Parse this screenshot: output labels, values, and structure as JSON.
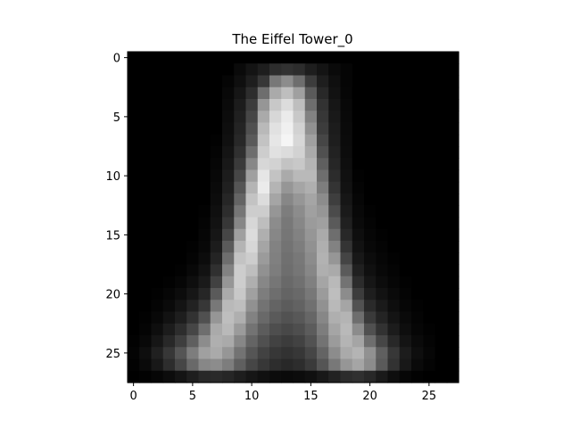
{
  "chart_data": {
    "type": "heatmap",
    "title": "The Eiffel Tower_0",
    "xlabel": "",
    "ylabel": "",
    "colormap": "gray",
    "value_range": [
      0,
      255
    ],
    "shape": [
      28,
      28
    ],
    "x_ticks": [
      0,
      5,
      10,
      15,
      20,
      25
    ],
    "y_ticks": [
      0,
      5,
      10,
      15,
      20,
      25
    ],
    "xlim": [
      -0.5,
      27.5
    ],
    "ylim": [
      27.5,
      -0.5
    ],
    "grid": false,
    "legend": "none",
    "values": [
      [
        0,
        0,
        0,
        0,
        0,
        0,
        0,
        0,
        0,
        0,
        0,
        0,
        0,
        0,
        0,
        0,
        0,
        0,
        0,
        0,
        0,
        0,
        0,
        0,
        0,
        0,
        0,
        0
      ],
      [
        0,
        0,
        0,
        0,
        0,
        0,
        0,
        0,
        0,
        10,
        20,
        30,
        45,
        50,
        45,
        30,
        20,
        10,
        5,
        0,
        0,
        0,
        0,
        0,
        0,
        0,
        0,
        0
      ],
      [
        0,
        0,
        0,
        0,
        0,
        0,
        0,
        0,
        5,
        15,
        30,
        55,
        120,
        140,
        110,
        60,
        30,
        15,
        5,
        0,
        0,
        0,
        0,
        0,
        0,
        0,
        0,
        0
      ],
      [
        0,
        0,
        0,
        0,
        0,
        0,
        0,
        0,
        8,
        22,
        45,
        110,
        170,
        190,
        160,
        90,
        40,
        18,
        6,
        0,
        0,
        0,
        0,
        0,
        0,
        0,
        0,
        0
      ],
      [
        0,
        0,
        0,
        0,
        0,
        0,
        0,
        0,
        10,
        28,
        60,
        150,
        200,
        220,
        190,
        110,
        50,
        22,
        8,
        0,
        0,
        0,
        0,
        0,
        0,
        0,
        0,
        0
      ],
      [
        0,
        0,
        0,
        0,
        0,
        0,
        0,
        0,
        12,
        32,
        70,
        170,
        215,
        235,
        200,
        130,
        55,
        25,
        9,
        0,
        0,
        0,
        0,
        0,
        0,
        0,
        0,
        0
      ],
      [
        0,
        0,
        0,
        0,
        0,
        0,
        0,
        0,
        14,
        36,
        80,
        185,
        225,
        240,
        210,
        145,
        60,
        28,
        10,
        0,
        0,
        0,
        0,
        0,
        0,
        0,
        0,
        0
      ],
      [
        0,
        0,
        0,
        0,
        0,
        0,
        0,
        2,
        16,
        40,
        90,
        195,
        230,
        245,
        215,
        160,
        70,
        30,
        11,
        0,
        0,
        0,
        0,
        0,
        0,
        0,
        0,
        0
      ],
      [
        0,
        0,
        0,
        0,
        0,
        0,
        0,
        4,
        20,
        48,
        110,
        205,
        225,
        220,
        210,
        170,
        80,
        34,
        12,
        0,
        0,
        0,
        0,
        0,
        0,
        0,
        0,
        0
      ],
      [
        0,
        0,
        0,
        0,
        0,
        0,
        0,
        6,
        24,
        58,
        135,
        215,
        210,
        195,
        200,
        180,
        95,
        38,
        14,
        0,
        0,
        0,
        0,
        0,
        0,
        0,
        0,
        0
      ],
      [
        0,
        0,
        0,
        0,
        0,
        0,
        0,
        8,
        28,
        70,
        160,
        230,
        195,
        170,
        185,
        185,
        110,
        44,
        16,
        2,
        0,
        0,
        0,
        0,
        0,
        0,
        0,
        0
      ],
      [
        0,
        0,
        0,
        0,
        0,
        0,
        0,
        10,
        32,
        85,
        180,
        235,
        180,
        150,
        165,
        175,
        125,
        52,
        18,
        4,
        0,
        0,
        0,
        0,
        0,
        0,
        0,
        0
      ],
      [
        0,
        0,
        0,
        0,
        0,
        0,
        0,
        12,
        38,
        100,
        195,
        220,
        165,
        135,
        150,
        165,
        140,
        62,
        22,
        6,
        0,
        0,
        0,
        0,
        0,
        0,
        0,
        0
      ],
      [
        0,
        0,
        0,
        0,
        0,
        0,
        2,
        15,
        45,
        118,
        205,
        205,
        150,
        125,
        140,
        160,
        150,
        75,
        26,
        8,
        2,
        0,
        0,
        0,
        0,
        0,
        0,
        0
      ],
      [
        0,
        0,
        0,
        0,
        0,
        0,
        4,
        18,
        55,
        135,
        215,
        190,
        140,
        120,
        135,
        155,
        160,
        90,
        32,
        10,
        4,
        0,
        0,
        0,
        0,
        0,
        0,
        0
      ],
      [
        0,
        0,
        0,
        0,
        0,
        0,
        6,
        22,
        70,
        160,
        220,
        175,
        135,
        118,
        130,
        150,
        170,
        110,
        40,
        14,
        6,
        2,
        0,
        0,
        0,
        0,
        0,
        0
      ],
      [
        0,
        0,
        0,
        0,
        0,
        2,
        8,
        28,
        90,
        180,
        215,
        165,
        130,
        115,
        125,
        145,
        175,
        130,
        52,
        18,
        8,
        4,
        0,
        0,
        0,
        0,
        0,
        0
      ],
      [
        0,
        0,
        0,
        0,
        0,
        4,
        12,
        36,
        110,
        195,
        205,
        155,
        128,
        112,
        120,
        140,
        178,
        150,
        68,
        24,
        12,
        6,
        2,
        0,
        0,
        0,
        0,
        0
      ],
      [
        0,
        0,
        0,
        0,
        2,
        8,
        18,
        48,
        130,
        205,
        190,
        145,
        125,
        110,
        118,
        135,
        175,
        170,
        90,
        32,
        16,
        8,
        4,
        0,
        0,
        0,
        0,
        0
      ],
      [
        0,
        0,
        0,
        2,
        6,
        14,
        26,
        65,
        150,
        205,
        175,
        135,
        118,
        105,
        112,
        128,
        165,
        185,
        115,
        44,
        22,
        12,
        6,
        2,
        0,
        0,
        0,
        0
      ],
      [
        0,
        0,
        2,
        6,
        12,
        22,
        38,
        90,
        170,
        200,
        160,
        125,
        110,
        100,
        105,
        120,
        155,
        190,
        140,
        60,
        30,
        18,
        10,
        4,
        0,
        0,
        0,
        0
      ],
      [
        0,
        0,
        4,
        10,
        20,
        34,
        55,
        120,
        185,
        190,
        145,
        115,
        100,
        92,
        98,
        112,
        145,
        185,
        165,
        82,
        42,
        26,
        14,
        6,
        2,
        0,
        0,
        0
      ],
      [
        0,
        2,
        8,
        18,
        30,
        50,
        80,
        150,
        190,
        175,
        130,
        105,
        90,
        82,
        88,
        102,
        135,
        175,
        180,
        110,
        58,
        36,
        20,
        10,
        4,
        0,
        0,
        0
      ],
      [
        0,
        4,
        14,
        28,
        45,
        70,
        110,
        170,
        185,
        155,
        115,
        92,
        78,
        72,
        78,
        92,
        125,
        165,
        185,
        140,
        80,
        50,
        28,
        14,
        6,
        2,
        0,
        0
      ],
      [
        2,
        8,
        22,
        40,
        62,
        95,
        140,
        175,
        170,
        135,
        100,
        80,
        66,
        60,
        66,
        82,
        115,
        155,
        180,
        165,
        110,
        70,
        40,
        20,
        10,
        4,
        0,
        0
      ],
      [
        4,
        14,
        32,
        55,
        85,
        125,
        160,
        170,
        150,
        115,
        85,
        66,
        55,
        50,
        55,
        70,
        100,
        140,
        170,
        180,
        145,
        95,
        55,
        28,
        14,
        6,
        0,
        0
      ],
      [
        2,
        10,
        24,
        45,
        70,
        105,
        135,
        140,
        125,
        95,
        70,
        55,
        45,
        40,
        45,
        58,
        85,
        120,
        150,
        165,
        140,
        90,
        50,
        24,
        10,
        4,
        0,
        0
      ],
      [
        0,
        2,
        6,
        12,
        20,
        30,
        40,
        42,
        38,
        30,
        22,
        16,
        12,
        10,
        12,
        16,
        24,
        34,
        44,
        48,
        40,
        26,
        14,
        6,
        2,
        0,
        0,
        0
      ]
    ]
  }
}
